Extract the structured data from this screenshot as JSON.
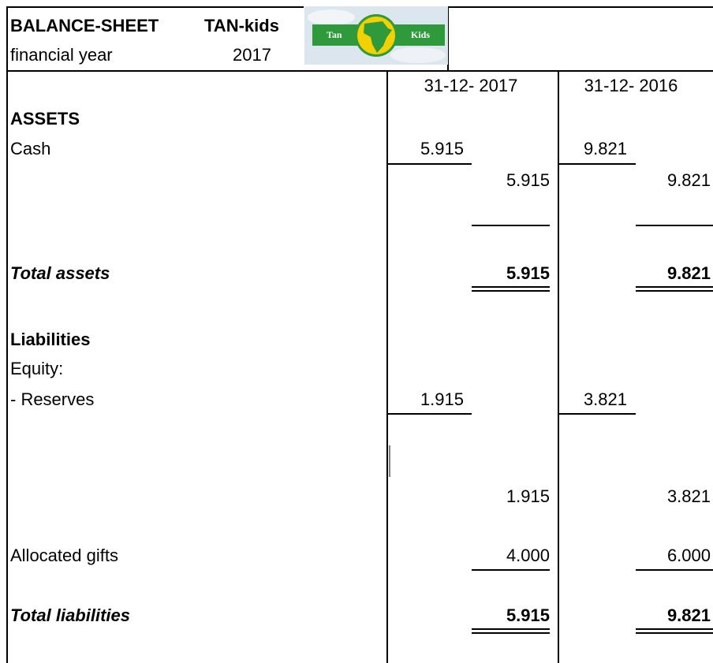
{
  "header": {
    "title": "BALANCE-SHEET",
    "company": "TAN-kids",
    "year_label": "financial year",
    "year": "2017",
    "logo": {
      "left": "Tan",
      "right": "Kids"
    }
  },
  "columns": [
    "31-12- 2017",
    "31-12- 2016"
  ],
  "rows": [
    {
      "label": "ASSETS"
    },
    {
      "label": "Cash",
      "sub": [
        "5.915",
        "9.821"
      ]
    },
    {
      "total": [
        "5.915",
        "9.821"
      ]
    },
    {
      "label": "Total assets",
      "total": [
        "5.915",
        "9.821"
      ]
    },
    {
      "label": "Liabilities"
    },
    {
      "label": "Equity:"
    },
    {
      "label": "- Reserves",
      "sub": [
        "1.915",
        "3.821"
      ]
    },
    {
      "total": [
        "1.915",
        "3.821"
      ]
    },
    {
      "label": "Allocated gifts",
      "total": [
        "4.000",
        "6.000"
      ]
    },
    {
      "label": "Total liabilities",
      "total": [
        "5.915",
        "9.821"
      ]
    }
  ]
}
